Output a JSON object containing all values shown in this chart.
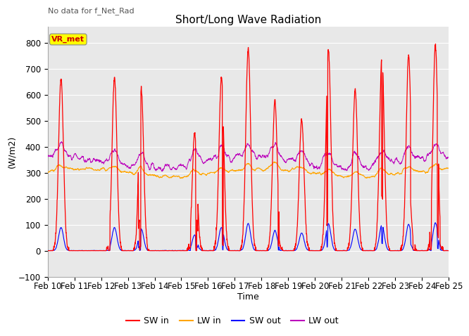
{
  "title": "Short/Long Wave Radiation",
  "subtitle": "No data for f_Net_Rad",
  "xlabel": "Time",
  "ylabel": "(W/m2)",
  "ylim": [
    -100,
    860
  ],
  "yticks": [
    -100,
    0,
    100,
    200,
    300,
    400,
    500,
    600,
    700,
    800
  ],
  "x_labels": [
    "Feb 10",
    "Feb 11",
    "Feb 12",
    "Feb 13",
    "Feb 14",
    "Feb 15",
    "Feb 16",
    "Feb 17",
    "Feb 18",
    "Feb 19",
    "Feb 20",
    "Feb 21",
    "Feb 22",
    "Feb 23",
    "Feb 24",
    "Feb 25"
  ],
  "legend_labels": [
    "SW in",
    "LW in",
    "SW out",
    "LW out"
  ],
  "sw_in_color": "#ff0000",
  "lw_in_color": "#ffa500",
  "sw_out_color": "#0000ff",
  "lw_out_color": "#bb00bb",
  "vr_met_box_color": "#ffff00",
  "vr_met_text_color": "#cc0000",
  "bg_color": "#ffffff",
  "plot_bg_color": "#e8e8e8",
  "grid_color": "#ffffff",
  "n_days": 15,
  "pts_per_day": 144,
  "peak_heights": [
    665,
    0,
    665,
    625,
    0,
    450,
    670,
    775,
    575,
    505,
    770,
    620,
    740,
    750,
    790
  ]
}
